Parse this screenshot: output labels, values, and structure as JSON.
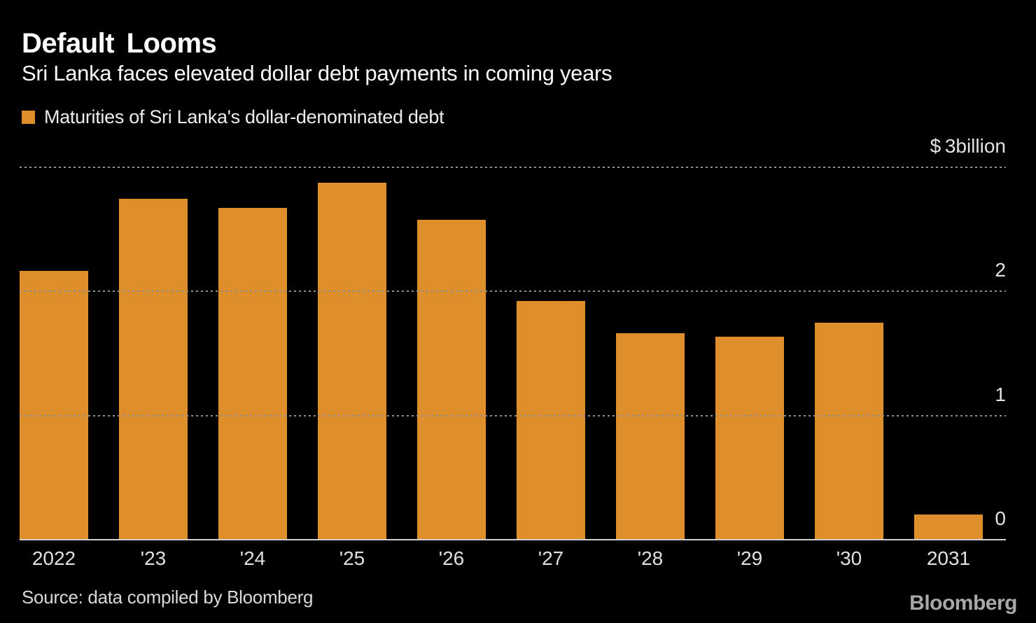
{
  "header": {
    "title": "Default Looms",
    "subtitle": "Sri Lanka faces elevated dollar debt payments in coming years"
  },
  "legend": {
    "label": "Maturities of Sri Lanka's dollar-denominated debt",
    "swatch_color": "#DE8E2B"
  },
  "chart_data": {
    "type": "bar",
    "title": "Default Looms",
    "subtitle": "Sri Lanka faces elevated dollar debt payments in coming years",
    "series_label": "Maturities of Sri Lanka's dollar-denominated debt",
    "categories": [
      "2022",
      "'23",
      "'24",
      "'25",
      "'26",
      "'27",
      "'28",
      "'29",
      "'30",
      "2031"
    ],
    "values": [
      2.16,
      2.74,
      2.67,
      2.87,
      2.57,
      1.92,
      1.66,
      1.63,
      1.74,
      0.2
    ],
    "unit": "USD billion",
    "ylim": [
      0,
      3
    ],
    "yticks": [
      {
        "value": 3,
        "label": "$ 3billion"
      },
      {
        "value": 2,
        "label": "2"
      },
      {
        "value": 1,
        "label": "1"
      },
      {
        "value": 0,
        "label": "0"
      }
    ],
    "grid": "dashed horizontal gridlines at 1, 2 and 3; solid baseline at 0",
    "legend_position": "top-left",
    "bar_color": "#DE8E2B"
  },
  "footer": {
    "source": "Source: data compiled by Bloomberg",
    "logo": "Bloomberg"
  },
  "colors": {
    "background": "#000000",
    "bar": "#DE8E2B",
    "gridline": "#8F8F8F",
    "axis_line": "#D0D0D0",
    "title_text": "#FFFFFF",
    "tick_text": "#E2E2E2",
    "source_text": "#D9D9D9",
    "logo_text": "#A8A8A8"
  }
}
